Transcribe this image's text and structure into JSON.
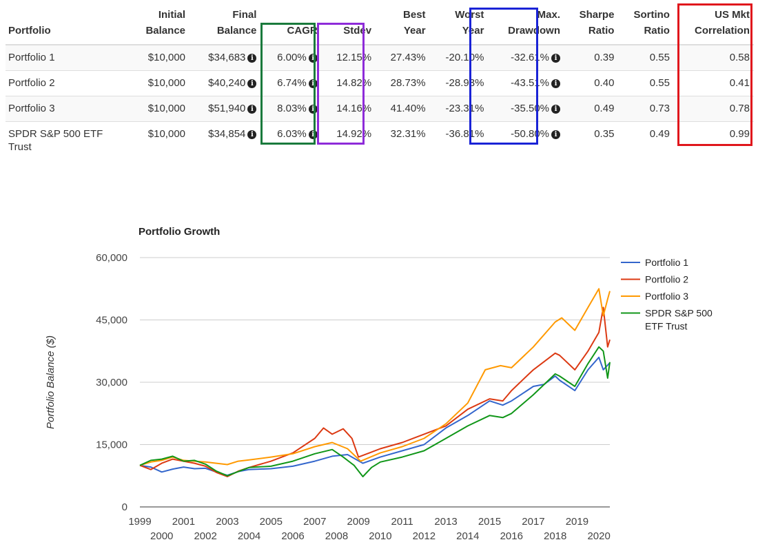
{
  "table": {
    "headers": [
      {
        "line1": "",
        "line2": "Portfolio"
      },
      {
        "line1": "Initial",
        "line2": "Balance"
      },
      {
        "line1": "Final",
        "line2": "Balance"
      },
      {
        "line1": "",
        "line2": "CAGR"
      },
      {
        "line1": "",
        "line2": "Stdev"
      },
      {
        "line1": "Best",
        "line2": "Year"
      },
      {
        "line1": "Worst",
        "line2": "Year"
      },
      {
        "line1": "Max.",
        "line2": "Drawdown"
      },
      {
        "line1": "Sharpe",
        "line2": "Ratio"
      },
      {
        "line1": "Sortino",
        "line2": "Ratio"
      },
      {
        "line1": "US Mkt",
        "line2": "Correlation"
      }
    ],
    "rows": [
      {
        "name": "Portfolio 1",
        "initial": "$10,000",
        "final": "$34,683",
        "cagr": "6.00%",
        "stdev": "12.15%",
        "best": "27.43%",
        "worst": "-20.10%",
        "drawdown": "-32.61%",
        "sharpe": "0.39",
        "sortino": "0.55",
        "corr": "0.58"
      },
      {
        "name": "Portfolio 2",
        "initial": "$10,000",
        "final": "$40,240",
        "cagr": "6.74%",
        "stdev": "14.82%",
        "best": "28.73%",
        "worst": "-28.93%",
        "drawdown": "-43.51%",
        "sharpe": "0.40",
        "sortino": "0.55",
        "corr": "0.41"
      },
      {
        "name": "Portfolio 3",
        "initial": "$10,000",
        "final": "$51,940",
        "cagr": "8.03%",
        "stdev": "14.16%",
        "best": "41.40%",
        "worst": "-23.31%",
        "drawdown": "-35.50%",
        "sharpe": "0.49",
        "sortino": "0.73",
        "corr": "0.78"
      },
      {
        "name": "SPDR S&P 500 ETF Trust",
        "initial": "$10,000",
        "final": "$34,854",
        "cagr": "6.03%",
        "stdev": "14.92%",
        "best": "32.31%",
        "worst": "-36.81%",
        "drawdown": "-50.80%",
        "sharpe": "0.35",
        "sortino": "0.49",
        "corr": "0.99"
      }
    ],
    "highlight_colors": {
      "cagr": "#1a7a3c",
      "stdev": "#8e2bd9",
      "drawdown": "#1a23d6",
      "corr": "#e0161c"
    }
  },
  "chart_data": {
    "type": "line",
    "title": "Portfolio Growth",
    "xlabel": "",
    "ylabel": "Portfolio Balance ($)",
    "xlim": [
      1999,
      2020.5
    ],
    "ylim": [
      0,
      60000
    ],
    "yticks": [
      "0",
      "15,000",
      "30,000",
      "45,000",
      "60,000"
    ],
    "ytick_values": [
      0,
      15000,
      30000,
      45000,
      60000
    ],
    "xticks_top": [
      "1999",
      "2001",
      "2003",
      "2005",
      "2007",
      "2009",
      "2011",
      "2013",
      "2015",
      "2017",
      "2019"
    ],
    "xticks_top_values": [
      1999,
      2001,
      2003,
      2005,
      2007,
      2009,
      2011,
      2013,
      2015,
      2017,
      2019
    ],
    "xticks_bottom": [
      "2000",
      "2002",
      "2004",
      "2006",
      "2008",
      "2010",
      "2012",
      "2014",
      "2016",
      "2018",
      "2020"
    ],
    "xticks_bottom_values": [
      2000,
      2002,
      2004,
      2006,
      2008,
      2010,
      2012,
      2014,
      2016,
      2018,
      2020
    ],
    "grid": true,
    "legend_position": "right",
    "series": [
      {
        "name": "Portfolio 1",
        "color": "#3366cc",
        "x": [
          1999,
          1999.5,
          2000,
          2000.5,
          2001,
          2001.5,
          2002,
          2002.5,
          2003,
          2003.5,
          2004,
          2005,
          2006,
          2007,
          2007.8,
          2008.5,
          2009.2,
          2010,
          2011,
          2012,
          2013,
          2014,
          2015,
          2015.6,
          2016,
          2017,
          2017.5,
          2018,
          2018.2,
          2018.9,
          2019.5,
          2020,
          2020.2,
          2020.5
        ],
        "values": [
          10000,
          9600,
          8400,
          9100,
          9600,
          9200,
          9300,
          8400,
          7600,
          8500,
          9000,
          9200,
          9800,
          11000,
          12200,
          12600,
          10500,
          12000,
          13500,
          15000,
          19000,
          22000,
          25500,
          24500,
          25500,
          29000,
          29500,
          31500,
          30500,
          28000,
          33000,
          36000,
          33000,
          34683
        ]
      },
      {
        "name": "Portfolio 2",
        "color": "#dc3912",
        "x": [
          1999,
          1999.5,
          2000,
          2000.5,
          2001,
          2001.5,
          2002,
          2002.5,
          2003,
          2003.5,
          2004,
          2005,
          2006,
          2007,
          2007.4,
          2007.8,
          2008.3,
          2008.7,
          2009,
          2009.5,
          2010,
          2011,
          2012,
          2013,
          2014,
          2015,
          2015.6,
          2016,
          2016.8,
          2017,
          2018,
          2018.2,
          2018.9,
          2019.5,
          2020,
          2020.2,
          2020.4,
          2020.5
        ],
        "values": [
          10000,
          9000,
          10500,
          11500,
          11000,
          10500,
          9800,
          8300,
          7300,
          8600,
          9500,
          11000,
          13000,
          16500,
          19000,
          17500,
          18800,
          16500,
          12000,
          13000,
          14000,
          15500,
          17500,
          19500,
          23500,
          26000,
          25500,
          28000,
          32000,
          33000,
          37000,
          36500,
          33000,
          37500,
          42000,
          48000,
          38500,
          40240
        ]
      },
      {
        "name": "Portfolio 3",
        "color": "#ff9900",
        "x": [
          1999,
          1999.5,
          2000,
          2000.5,
          2001,
          2001.5,
          2002,
          2002.5,
          2003,
          2003.5,
          2004,
          2005,
          2006,
          2007,
          2007.8,
          2008.5,
          2009.1,
          2010,
          2011,
          2012,
          2013,
          2014,
          2014.8,
          2015.5,
          2016,
          2016.8,
          2017,
          2018,
          2018.3,
          2018.9,
          2019.5,
          2020,
          2020.2,
          2020.4,
          2020.5
        ],
        "values": [
          10000,
          10800,
          11200,
          12000,
          11200,
          11000,
          10800,
          10500,
          10200,
          11000,
          11300,
          12000,
          12800,
          14500,
          15500,
          14000,
          11000,
          13000,
          14500,
          16500,
          20000,
          25000,
          33000,
          34000,
          33500,
          37500,
          38500,
          44500,
          45500,
          42500,
          48000,
          52500,
          46000,
          50000,
          51940
        ]
      },
      {
        "name": "SPDR S&P 500 ETF Trust",
        "color": "#109618",
        "x": [
          1999,
          1999.5,
          2000,
          2000.5,
          2001,
          2001.5,
          2002,
          2002.5,
          2003,
          2003.5,
          2004,
          2005,
          2006,
          2007,
          2007.8,
          2008.3,
          2008.8,
          2009.2,
          2009.6,
          2010,
          2011,
          2012,
          2013,
          2014,
          2015,
          2015.6,
          2016,
          2017,
          2018,
          2018.2,
          2018.9,
          2019.5,
          2020,
          2020.2,
          2020.4,
          2020.5
        ],
        "values": [
          10000,
          11200,
          11500,
          12200,
          11000,
          11200,
          10300,
          8600,
          7500,
          8500,
          9500,
          9800,
          11000,
          12800,
          13800,
          12000,
          10000,
          7300,
          9500,
          10800,
          12000,
          13500,
          16500,
          19500,
          22000,
          21500,
          22500,
          27000,
          32000,
          31500,
          29000,
          34500,
          38500,
          37500,
          31000,
          34854
        ]
      }
    ]
  }
}
